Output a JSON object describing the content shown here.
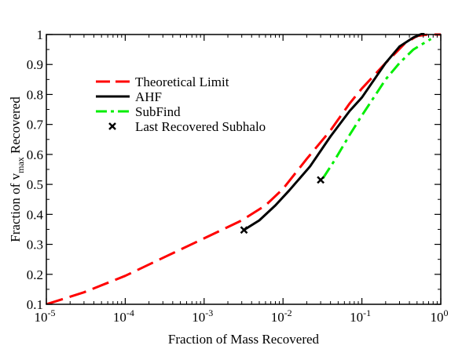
{
  "chart_data": {
    "type": "line",
    "xlabel": "Fraction of Mass Recovered",
    "ylabel": "Fraction of v",
    "ylabel_sub": "max",
    "ylabel_suffix": " Recovered",
    "xscale": "log",
    "xlim": [
      1e-05,
      1
    ],
    "ylim": [
      0.1,
      1
    ],
    "grid": false,
    "legend_position": "upper-left",
    "x_ticks": [
      {
        "value": 1e-05,
        "base": "10",
        "exp": "-5"
      },
      {
        "value": 0.0001,
        "base": "10",
        "exp": "-4"
      },
      {
        "value": 0.001,
        "base": "10",
        "exp": "-3"
      },
      {
        "value": 0.01,
        "base": "10",
        "exp": "-2"
      },
      {
        "value": 0.1,
        "base": "10",
        "exp": "-1"
      },
      {
        "value": 1,
        "base": "10",
        "exp": "0"
      }
    ],
    "y_ticks": [
      {
        "value": 0.1,
        "label": "0.1"
      },
      {
        "value": 0.2,
        "label": "0.2"
      },
      {
        "value": 0.3,
        "label": "0.3"
      },
      {
        "value": 0.4,
        "label": "0.4"
      },
      {
        "value": 0.5,
        "label": "0.5"
      },
      {
        "value": 0.6,
        "label": "0.6"
      },
      {
        "value": 0.7,
        "label": "0.7"
      },
      {
        "value": 0.8,
        "label": "0.8"
      },
      {
        "value": 0.9,
        "label": "0.9"
      },
      {
        "value": 1,
        "label": "1"
      }
    ],
    "series": [
      {
        "name": "Theoretical Limit",
        "color": "#ff0000",
        "style": "dashed",
        "x": [
          1e-05,
          3e-05,
          0.0001,
          0.0003,
          0.001,
          0.003,
          0.006,
          0.01,
          0.02,
          0.04,
          0.07,
          0.1,
          0.2,
          0.35,
          0.5,
          0.7,
          1
        ],
        "y": [
          0.1,
          0.14,
          0.195,
          0.255,
          0.32,
          0.38,
          0.43,
          0.485,
          0.585,
          0.68,
          0.77,
          0.82,
          0.905,
          0.97,
          0.995,
          1.0,
          1.0
        ]
      },
      {
        "name": "AHF",
        "color": "#000000",
        "style": "solid",
        "x": [
          0.0032,
          0.005,
          0.008,
          0.012,
          0.022,
          0.04,
          0.07,
          0.1,
          0.2,
          0.3,
          0.45,
          0.55,
          0.62
        ],
        "y": [
          0.348,
          0.38,
          0.43,
          0.48,
          0.56,
          0.66,
          0.745,
          0.79,
          0.905,
          0.96,
          0.99,
          1.0,
          1.005
        ]
      },
      {
        "name": "SubFind",
        "color": "#00ee00",
        "style": "dashdot",
        "x": [
          0.032,
          0.045,
          0.07,
          0.1,
          0.15,
          0.2,
          0.3,
          0.45,
          0.6,
          0.75
        ],
        "y": [
          0.52,
          0.58,
          0.665,
          0.73,
          0.8,
          0.85,
          0.905,
          0.95,
          0.97,
          0.985
        ]
      }
    ],
    "markers": {
      "name": "Last Recovered Subhalo",
      "color": "#000000",
      "symbol": "x",
      "points": [
        {
          "x": 0.0032,
          "y": 0.348
        },
        {
          "x": 0.03,
          "y": 0.515
        }
      ]
    }
  }
}
